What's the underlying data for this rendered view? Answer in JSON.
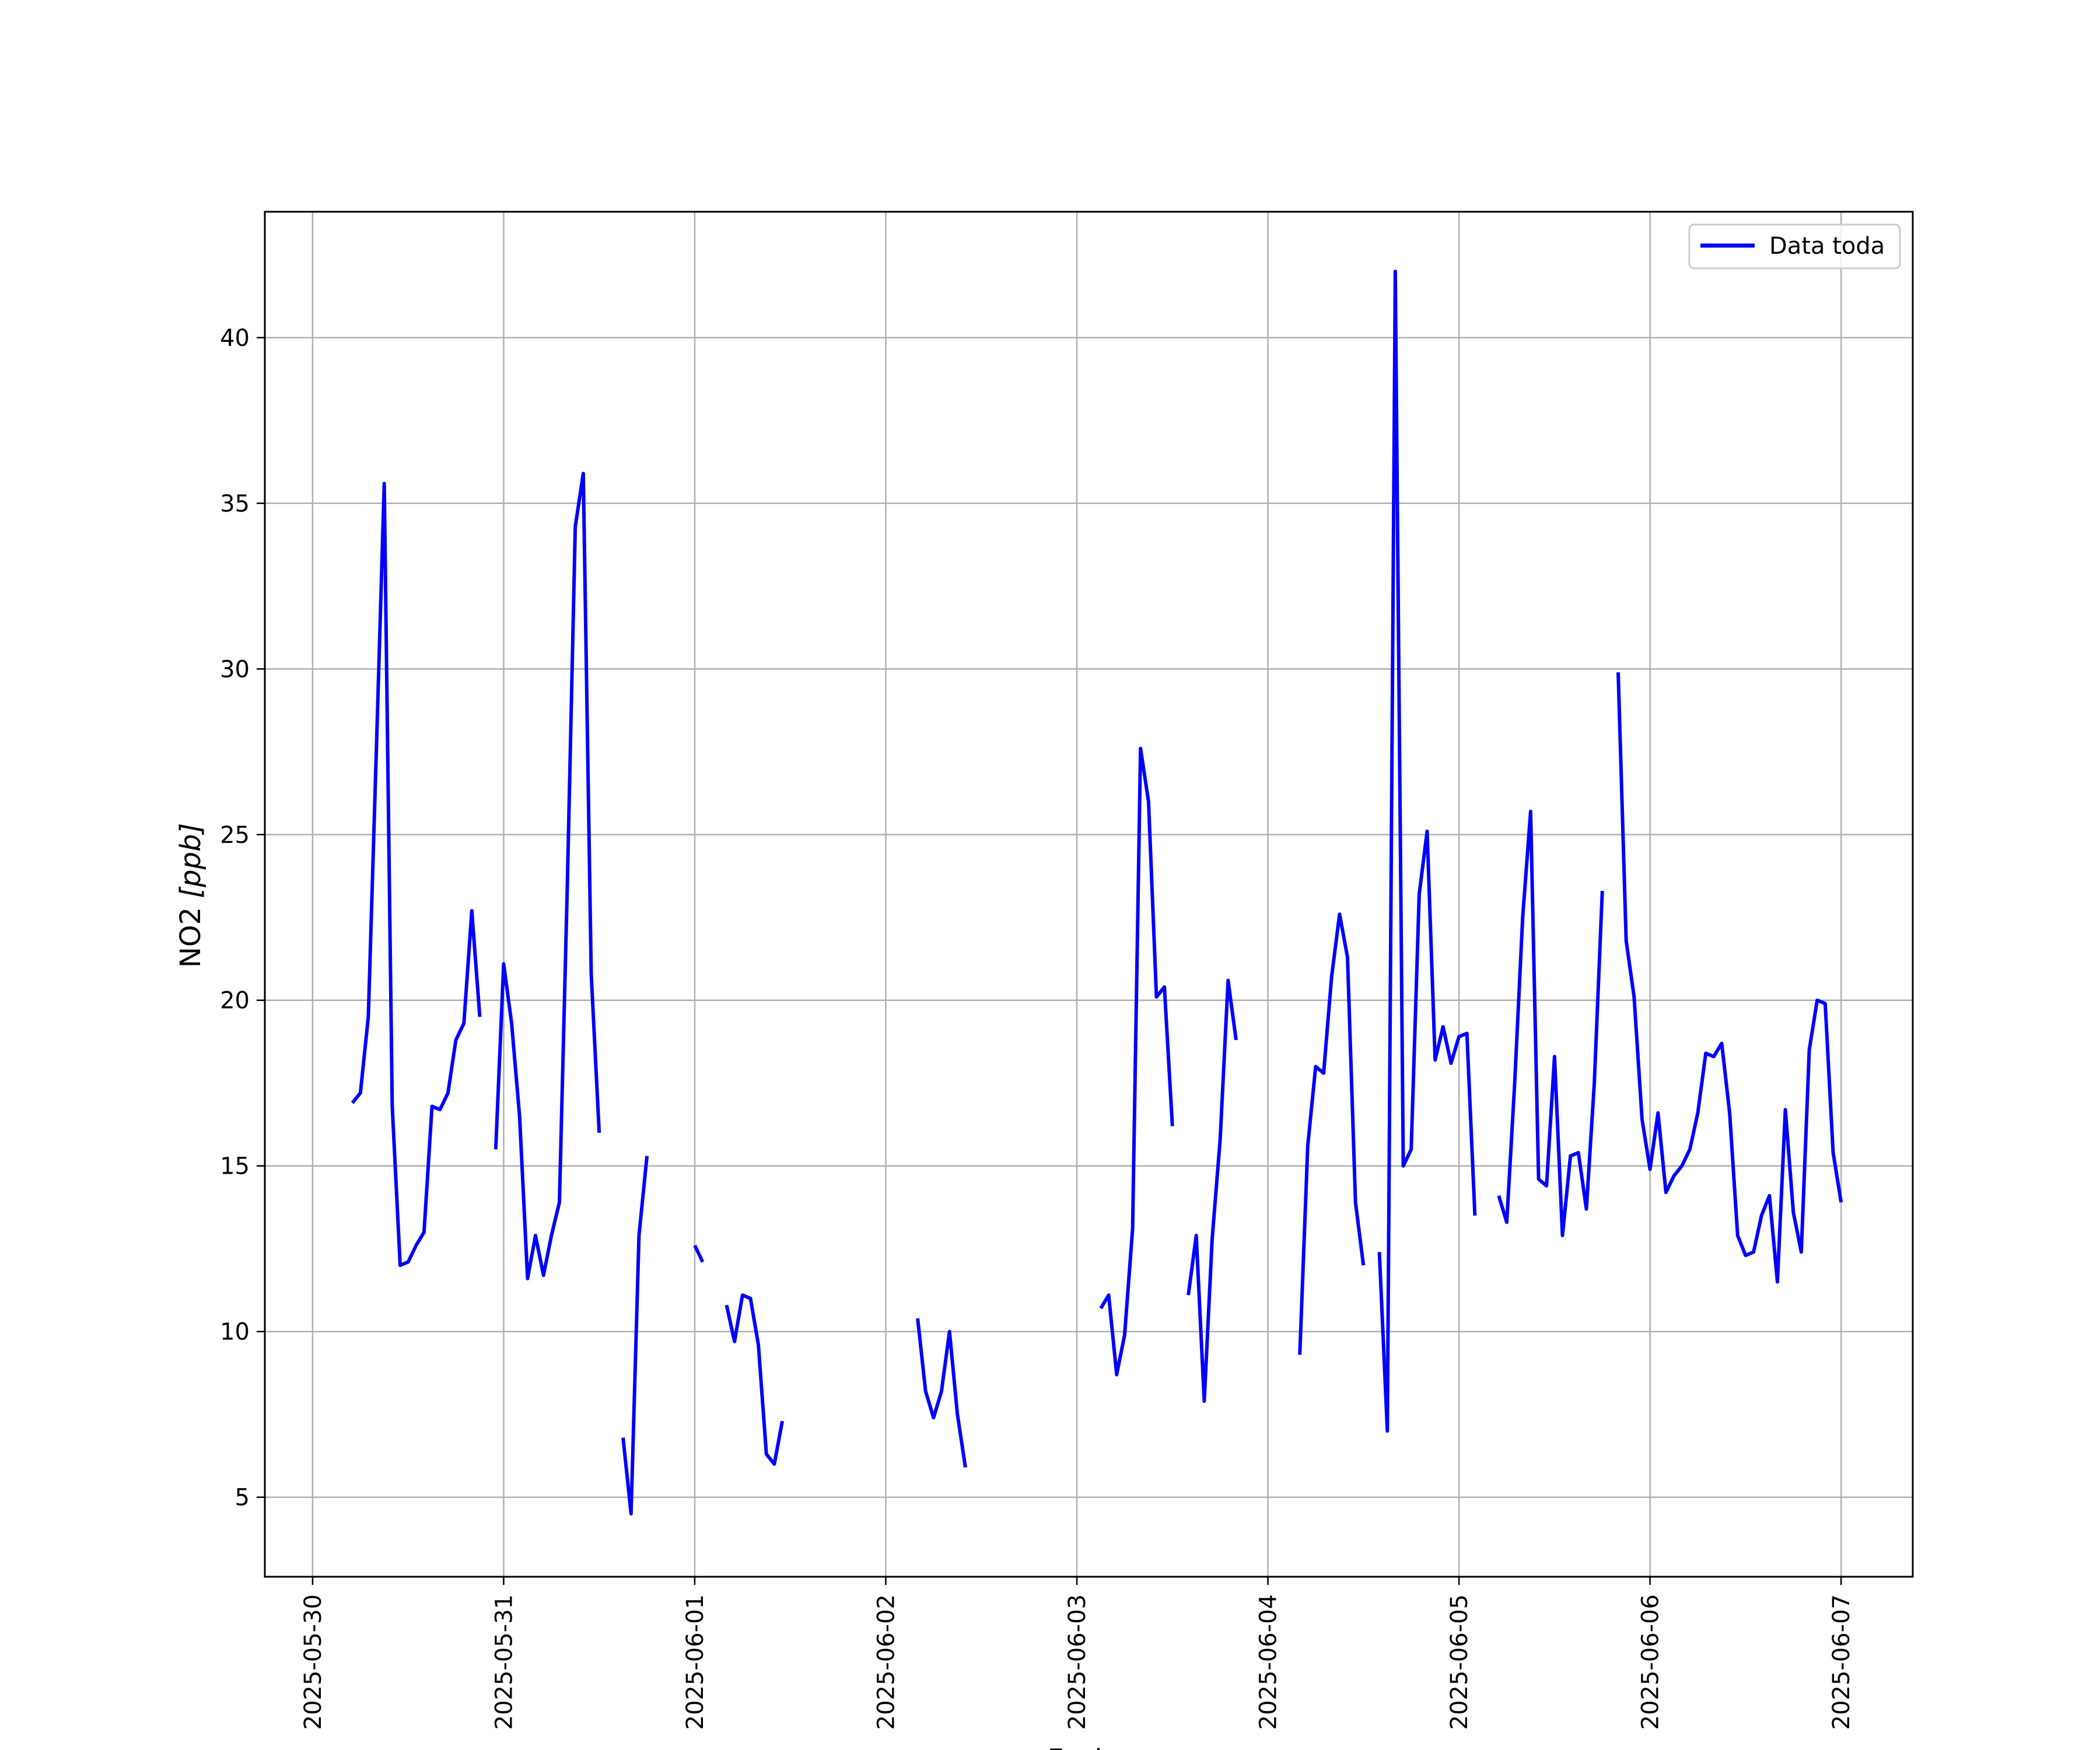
{
  "chart_data": {
    "type": "line",
    "xlabel": "Fecha",
    "ylabel_text": "NO2 ",
    "ylabel_unit": "[ppb]",
    "x_type": "datetime",
    "xlim": [
      "2025-05-29 18:00",
      "2025-06-07 09:00"
    ],
    "ylim": [
      2.6,
      43.8
    ],
    "yticks": [
      5,
      10,
      15,
      20,
      25,
      30,
      35,
      40
    ],
    "xticks": [
      "2025-05-30",
      "2025-05-31",
      "2025-06-01",
      "2025-06-02",
      "2025-06-03",
      "2025-06-04",
      "2025-06-05",
      "2025-06-06",
      "2025-06-07"
    ],
    "grid": true,
    "legend_position": "upper right",
    "colors": {
      "series": "#0000ff",
      "grid": "#b0b0b0",
      "frame": "#000000"
    },
    "series": [
      {
        "name": "Data toda",
        "segments": [
          [
            [
              "2025-05-30 05:00",
              16.9
            ],
            [
              "2025-05-30 06:00",
              17.2
            ],
            [
              "2025-05-30 07:00",
              19.5
            ],
            [
              "2025-05-30 08:00",
              27.5
            ],
            [
              "2025-05-30 09:00",
              35.6
            ],
            [
              "2025-05-30 10:00",
              16.8
            ],
            [
              "2025-05-30 11:00",
              12.0
            ],
            [
              "2025-05-30 12:00",
              12.1
            ],
            [
              "2025-05-30 13:00",
              12.6
            ],
            [
              "2025-05-30 14:00",
              13.0
            ],
            [
              "2025-05-30 15:00",
              16.8
            ],
            [
              "2025-05-30 16:00",
              16.7
            ],
            [
              "2025-05-30 17:00",
              17.2
            ],
            [
              "2025-05-30 18:00",
              18.8
            ],
            [
              "2025-05-30 19:00",
              19.3
            ],
            [
              "2025-05-30 20:00",
              22.7
            ],
            [
              "2025-05-30 21:00",
              19.5
            ]
          ],
          [
            [
              "2025-05-30 23:00",
              15.5
            ],
            [
              "2025-05-31 00:00",
              21.1
            ],
            [
              "2025-05-31 01:00",
              19.3
            ],
            [
              "2025-05-31 02:00",
              16.5
            ],
            [
              "2025-05-31 03:00",
              11.6
            ],
            [
              "2025-05-31 04:00",
              12.9
            ],
            [
              "2025-05-31 05:00",
              11.7
            ],
            [
              "2025-05-31 06:00",
              12.9
            ],
            [
              "2025-05-31 07:00",
              13.9
            ],
            [
              "2025-05-31 08:00",
              23.5
            ],
            [
              "2025-05-31 09:00",
              34.3
            ],
            [
              "2025-05-31 10:00",
              35.9
            ],
            [
              "2025-05-31 11:00",
              20.8
            ],
            [
              "2025-05-31 12:00",
              16.0
            ]
          ],
          [
            [
              "2025-05-31 15:00",
              6.8
            ],
            [
              "2025-05-31 16:00",
              4.5
            ],
            [
              "2025-05-31 17:00",
              12.9
            ],
            [
              "2025-05-31 18:00",
              15.3
            ]
          ],
          [
            [
              "2025-06-01 00:00",
              12.6
            ],
            [
              "2025-06-01 01:00",
              12.1
            ]
          ],
          [
            [
              "2025-06-01 04:00",
              10.8
            ],
            [
              "2025-06-01 05:00",
              9.7
            ],
            [
              "2025-06-01 06:00",
              11.1
            ],
            [
              "2025-06-01 07:00",
              11.0
            ],
            [
              "2025-06-01 08:00",
              9.6
            ],
            [
              "2025-06-01 09:00",
              6.3
            ],
            [
              "2025-06-01 10:00",
              6.0
            ],
            [
              "2025-06-01 11:00",
              7.3
            ]
          ],
          [
            [
              "2025-06-02 04:00",
              10.4
            ],
            [
              "2025-06-02 05:00",
              8.2
            ],
            [
              "2025-06-02 06:00",
              7.4
            ],
            [
              "2025-06-02 07:00",
              8.2
            ],
            [
              "2025-06-02 08:00",
              10.0
            ],
            [
              "2025-06-02 09:00",
              7.5
            ],
            [
              "2025-06-02 10:00",
              5.9
            ]
          ],
          [
            [
              "2025-06-03 03:00",
              10.7
            ],
            [
              "2025-06-03 04:00",
              11.1
            ],
            [
              "2025-06-03 05:00",
              8.7
            ],
            [
              "2025-06-03 06:00",
              9.9
            ],
            [
              "2025-06-03 07:00",
              13.1
            ],
            [
              "2025-06-03 08:00",
              27.6
            ],
            [
              "2025-06-03 09:00",
              26.0
            ],
            [
              "2025-06-03 10:00",
              20.1
            ],
            [
              "2025-06-03 11:00",
              20.4
            ],
            [
              "2025-06-03 12:00",
              16.2
            ]
          ],
          [
            [
              "2025-06-03 14:00",
              11.1
            ],
            [
              "2025-06-03 15:00",
              12.9
            ],
            [
              "2025-06-03 16:00",
              7.9
            ],
            [
              "2025-06-03 17:00",
              12.8
            ],
            [
              "2025-06-03 18:00",
              15.8
            ],
            [
              "2025-06-03 19:00",
              20.6
            ],
            [
              "2025-06-03 20:00",
              18.8
            ]
          ],
          [
            [
              "2025-06-04 04:00",
              9.3
            ],
            [
              "2025-06-04 05:00",
              15.6
            ],
            [
              "2025-06-04 06:00",
              18.0
            ],
            [
              "2025-06-04 07:00",
              17.8
            ],
            [
              "2025-06-04 08:00",
              20.7
            ],
            [
              "2025-06-04 09:00",
              22.6
            ],
            [
              "2025-06-04 10:00",
              21.3
            ],
            [
              "2025-06-04 11:00",
              13.9
            ],
            [
              "2025-06-04 12:00",
              12.0
            ]
          ],
          [
            [
              "2025-06-04 14:00",
              12.4
            ],
            [
              "2025-06-04 15:00",
              7.0
            ],
            [
              "2025-06-04 16:00",
              42.0
            ],
            [
              "2025-06-04 17:00",
              15.0
            ],
            [
              "2025-06-04 18:00",
              15.5
            ],
            [
              "2025-06-04 19:00",
              23.2
            ],
            [
              "2025-06-04 20:00",
              25.1
            ],
            [
              "2025-06-04 21:00",
              18.2
            ],
            [
              "2025-06-04 22:00",
              19.2
            ],
            [
              "2025-06-04 23:00",
              18.1
            ],
            [
              "2025-06-05 00:00",
              18.9
            ],
            [
              "2025-06-05 01:00",
              19.0
            ],
            [
              "2025-06-05 02:00",
              13.5
            ]
          ],
          [
            [
              "2025-06-05 05:00",
              14.1
            ],
            [
              "2025-06-05 06:00",
              13.3
            ],
            [
              "2025-06-05 07:00",
              17.5
            ],
            [
              "2025-06-05 08:00",
              22.5
            ],
            [
              "2025-06-05 09:00",
              25.7
            ],
            [
              "2025-06-05 10:00",
              14.6
            ],
            [
              "2025-06-05 11:00",
              14.4
            ],
            [
              "2025-06-05 12:00",
              18.3
            ],
            [
              "2025-06-05 13:00",
              12.9
            ],
            [
              "2025-06-05 14:00",
              15.3
            ],
            [
              "2025-06-05 15:00",
              15.4
            ],
            [
              "2025-06-05 16:00",
              13.7
            ],
            [
              "2025-06-05 17:00",
              17.5
            ],
            [
              "2025-06-05 18:00",
              23.3
            ]
          ],
          [
            [
              "2025-06-05 20:00",
              29.9
            ],
            [
              "2025-06-05 21:00",
              21.8
            ],
            [
              "2025-06-05 22:00",
              20.1
            ],
            [
              "2025-06-05 23:00",
              16.4
            ],
            [
              "2025-06-06 00:00",
              14.9
            ],
            [
              "2025-06-06 01:00",
              16.6
            ],
            [
              "2025-06-06 02:00",
              14.2
            ],
            [
              "2025-06-06 03:00",
              14.7
            ],
            [
              "2025-06-06 04:00",
              15.0
            ],
            [
              "2025-06-06 05:00",
              15.5
            ],
            [
              "2025-06-06 06:00",
              16.6
            ],
            [
              "2025-06-06 07:00",
              18.4
            ],
            [
              "2025-06-06 08:00",
              18.3
            ],
            [
              "2025-06-06 09:00",
              18.7
            ],
            [
              "2025-06-06 10:00",
              16.6
            ],
            [
              "2025-06-06 11:00",
              12.9
            ],
            [
              "2025-06-06 12:00",
              12.3
            ],
            [
              "2025-06-06 13:00",
              12.4
            ],
            [
              "2025-06-06 14:00",
              13.5
            ],
            [
              "2025-06-06 15:00",
              14.1
            ],
            [
              "2025-06-06 16:00",
              11.5
            ],
            [
              "2025-06-06 17:00",
              16.7
            ],
            [
              "2025-06-06 18:00",
              13.6
            ],
            [
              "2025-06-06 19:00",
              12.4
            ],
            [
              "2025-06-06 20:00",
              18.5
            ],
            [
              "2025-06-06 21:00",
              20.0
            ],
            [
              "2025-06-06 22:00",
              19.9
            ],
            [
              "2025-06-06 23:00",
              15.4
            ],
            [
              "2025-06-07 00:00",
              13.9
            ]
          ]
        ]
      }
    ]
  }
}
